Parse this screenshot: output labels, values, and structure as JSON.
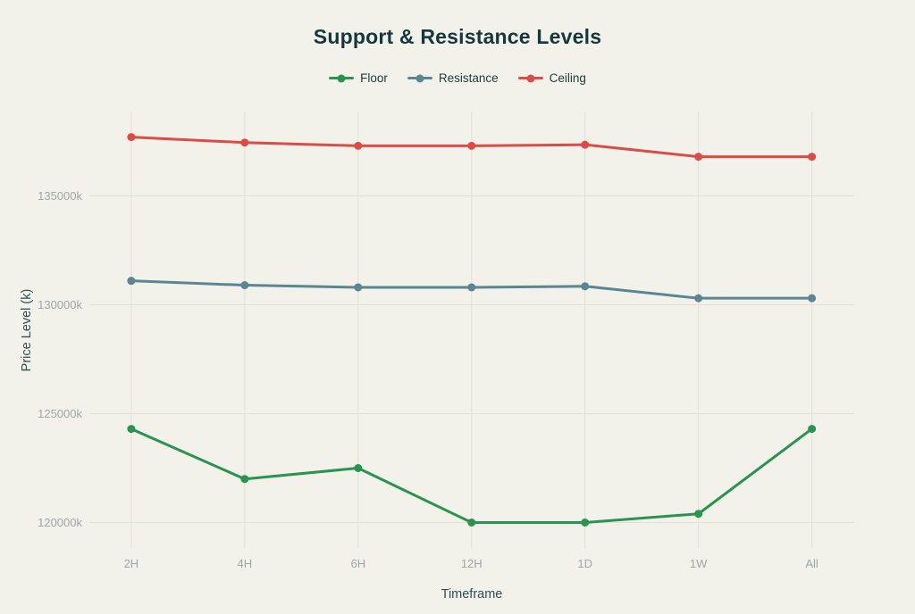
{
  "title": "Support & Resistance Levels",
  "legend": {
    "items": [
      {
        "label": "Floor",
        "color": "#28944f"
      },
      {
        "label": "Resistance",
        "color": "#5a8593"
      },
      {
        "label": "Ceiling",
        "color": "#dc4b45"
      }
    ]
  },
  "chart_data": {
    "type": "line",
    "title": "Support & Resistance Levels",
    "xlabel": "Timeframe",
    "ylabel": "Price Level (k)",
    "categories": [
      "2H",
      "4H",
      "6H",
      "12H",
      "1D",
      "1W",
      "All"
    ],
    "series": [
      {
        "name": "Floor",
        "color": "#28944f",
        "values": [
          124300,
          122000,
          122500,
          120000,
          120000,
          120400,
          124300
        ]
      },
      {
        "name": "Resistance",
        "color": "#5a8593",
        "values": [
          131100,
          130900,
          130800,
          130800,
          130850,
          130300,
          130300
        ]
      },
      {
        "name": "Ceiling",
        "color": "#dc4b45",
        "values": [
          137700,
          137450,
          137300,
          137300,
          137350,
          136800,
          136800
        ]
      }
    ],
    "yticks": [
      120000,
      125000,
      130000,
      135000
    ],
    "ytick_labels": [
      "120000k",
      "125000k",
      "130000k",
      "135000k"
    ],
    "ylim": [
      119000,
      138900
    ],
    "grid": true,
    "legend_position": "top",
    "colors": {
      "background": "#f2f1ea",
      "grid": "#e2e1d9",
      "tick_text": "#9fa6a6",
      "axis_title": "#2f4f52",
      "title_text": "#15383e"
    }
  }
}
